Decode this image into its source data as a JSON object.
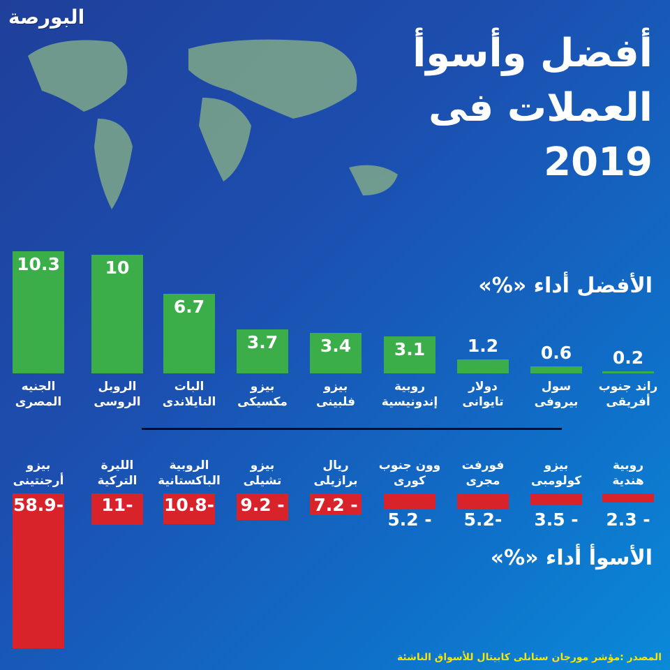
{
  "logo": "البورصة",
  "title_lines": [
    "أفضل وأسوأ",
    "العملات فى",
    "2019"
  ],
  "best_heading": "الأفضل أداء «%»",
  "worst_heading": "الأسوأ أداء «%»",
  "source": "المصدر :مؤشر مورجان ستانلى كابيتال للأسواق الناشئة",
  "colors": {
    "best": "#3cae49",
    "worst": "#d8232a"
  },
  "chart_data": [
    {
      "type": "bar",
      "title": "الأفضل أداء «%»",
      "categories": [
        [
          "الجنيه",
          "المصرى"
        ],
        [
          "الروبل",
          "الروسى"
        ],
        [
          "البات",
          "التايلاندى"
        ],
        [
          "بيزو",
          "مكسيكى"
        ],
        [
          "بيزو",
          "فلبينى"
        ],
        [
          "روبية",
          "إندونيسية"
        ],
        [
          "دولار",
          "تايوانى"
        ],
        [
          "سول",
          "بيروفى"
        ],
        [
          "راند جنوب",
          "أفريقى"
        ]
      ],
      "values": [
        10.3,
        10,
        6.7,
        3.7,
        3.4,
        3.1,
        1.2,
        0.6,
        0.2
      ],
      "value_labels": [
        "10.3",
        "10",
        "6.7",
        "3.7",
        "3.4",
        "3.1",
        "1.2",
        "0.6",
        "0.2"
      ]
    },
    {
      "type": "bar",
      "title": "الأسوأ أداء «%»",
      "categories": [
        [
          "بيزو",
          "أرجنتينى"
        ],
        [
          "الليرة",
          "التركية"
        ],
        [
          "الروبية",
          "الباكستانية"
        ],
        [
          "بيزو",
          "تشيلى"
        ],
        [
          "ريال",
          "برازيلى"
        ],
        [
          "وون جنوب",
          "كورى"
        ],
        [
          "فورفت",
          "مجرى"
        ],
        [
          "بيزو",
          "كولومبى"
        ],
        [
          "روبية",
          "هندية"
        ]
      ],
      "values": [
        -58.9,
        -11,
        -10.8,
        -9.2,
        -7.2,
        -5.2,
        -5.2,
        -3.5,
        -2.3
      ],
      "value_labels": [
        "58.9-",
        "11-",
        "10.8-",
        "9.2 -",
        "7.2 -",
        "5.2 -",
        "5.2-",
        "3.5 -",
        "2.3 -"
      ]
    }
  ]
}
